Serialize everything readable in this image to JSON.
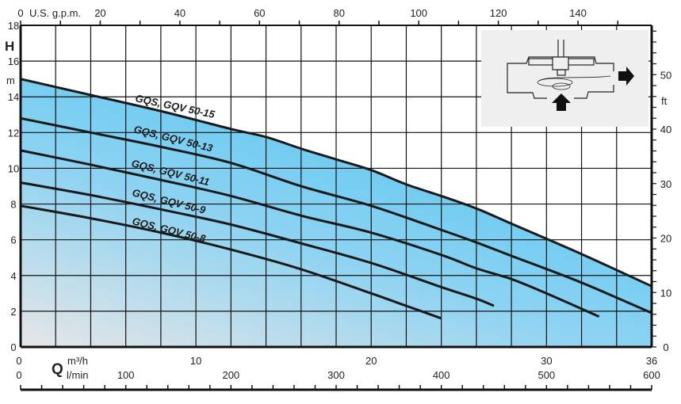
{
  "chart_data": {
    "type": "line",
    "xlabel": "Q",
    "x_unit_primary": "m³/h",
    "x_unit_secondary": "l/min",
    "x_unit_top": "U.S. g.p.m.",
    "ylabel": "H",
    "y_unit_primary": "m",
    "y_unit_secondary": "ft",
    "xlim": [
      0,
      36
    ],
    "ylim": [
      0,
      18
    ],
    "grid": true,
    "x_ticks": [
      0,
      10,
      20,
      30,
      36
    ],
    "y_ticks": [
      0,
      2,
      4,
      6,
      8,
      10,
      12,
      14,
      16,
      18
    ],
    "top_ticks": [
      0,
      20,
      40,
      60,
      80,
      100,
      120,
      140
    ],
    "bottom_secondary_ticks": [
      0,
      100,
      200,
      300,
      400,
      500,
      600
    ],
    "right_ticks": [
      0,
      10,
      20,
      30,
      40,
      50
    ],
    "series": [
      {
        "name": "GQS, GQV 50-15",
        "x": [
          0,
          4,
          8,
          12,
          14,
          16,
          18,
          20,
          22,
          24,
          26,
          28,
          32,
          36
        ],
        "y": [
          15,
          14.1,
          13.2,
          12.2,
          11.75,
          11.1,
          10.5,
          9.9,
          9.1,
          8.45,
          7.75,
          6.9,
          5.2,
          3.4
        ]
      },
      {
        "name": "GQS, GQV 50-13",
        "x": [
          0,
          4,
          8,
          12,
          16,
          20,
          24,
          26,
          28,
          32,
          36
        ],
        "y": [
          12.8,
          12.0,
          11.2,
          10.3,
          9.0,
          7.9,
          6.55,
          5.85,
          5.1,
          3.6,
          1.9
        ]
      },
      {
        "name": "GQS, GQV 50-11",
        "x": [
          0,
          4,
          8,
          12,
          16,
          20,
          24,
          26,
          28,
          30,
          33
        ],
        "y": [
          11.0,
          10.2,
          9.35,
          8.45,
          7.35,
          6.4,
          5.15,
          4.4,
          3.8,
          3.0,
          1.7
        ]
      },
      {
        "name": "GQS, GQV 50-9",
        "x": [
          0,
          4,
          8,
          12,
          16,
          20,
          24,
          26,
          27
        ],
        "y": [
          9.2,
          8.5,
          7.7,
          6.85,
          5.8,
          4.7,
          3.35,
          2.7,
          2.3
        ]
      },
      {
        "name": "GQS, GQV 50-8",
        "x": [
          0,
          4,
          8,
          12,
          16,
          20,
          22,
          24
        ],
        "y": [
          7.9,
          7.2,
          6.4,
          5.45,
          4.35,
          3.0,
          2.3,
          1.6
        ]
      }
    ]
  },
  "colors": {
    "fill_top": "#4fc6f0",
    "fill_bottom": "#e6e6e6",
    "inset_bg": "#efefef",
    "line": "#1a1a1a"
  }
}
